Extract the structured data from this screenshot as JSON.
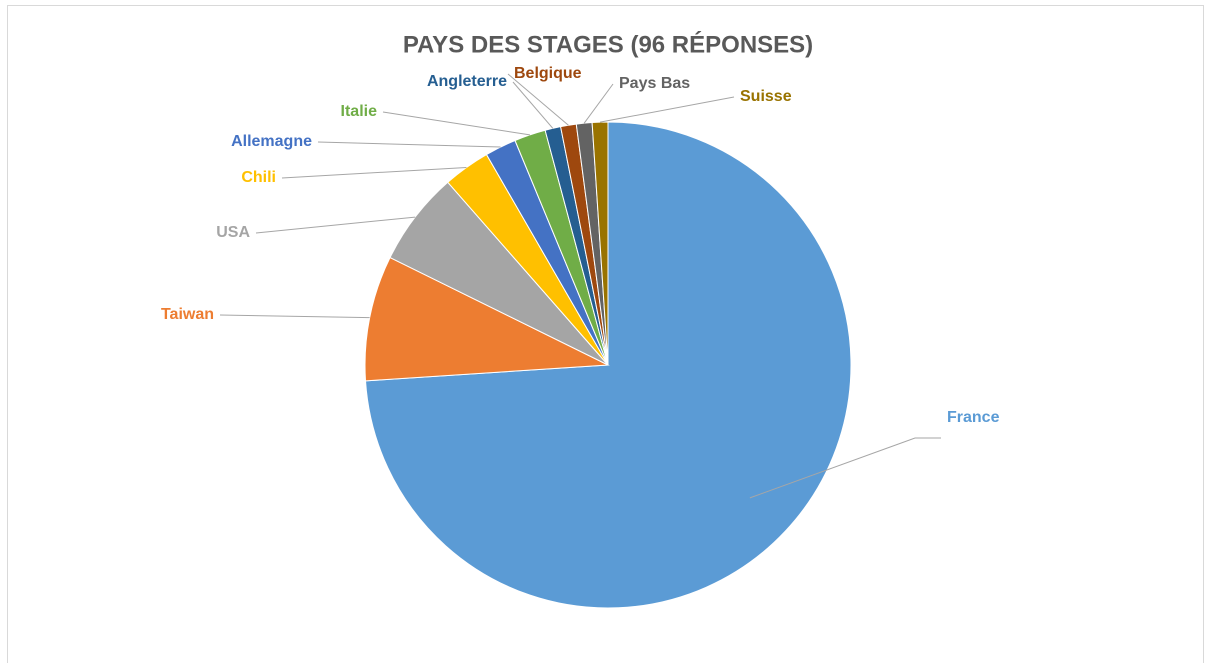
{
  "chart_data": {
    "type": "pie",
    "title": "PAYS DES STAGES (96 RÉPONSES)",
    "categories": [
      "France",
      "Taiwan",
      "USA",
      "Chili",
      "Allemagne",
      "Italie",
      "Angleterre",
      "Belgique",
      "Pays Bas",
      "Suisse"
    ],
    "values": [
      71,
      8,
      6,
      3,
      2,
      2,
      1,
      1,
      1,
      1
    ],
    "colors": [
      "#5b9bd5",
      "#ed7d31",
      "#a5a5a5",
      "#ffc000",
      "#4472c4",
      "#70ad47",
      "#255e91",
      "#9e480e",
      "#636363",
      "#997300"
    ]
  }
}
